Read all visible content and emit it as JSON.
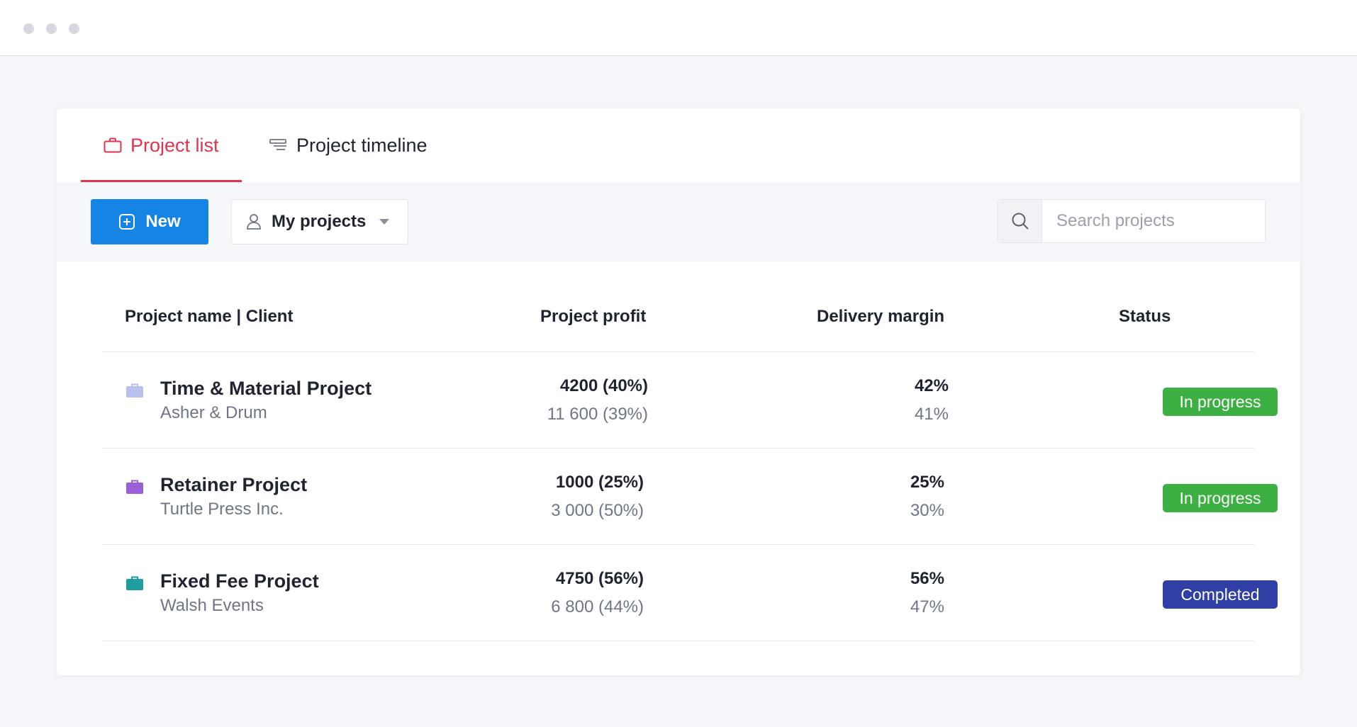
{
  "tabs": [
    {
      "label": "Project list",
      "icon": "briefcase-icon",
      "active": true
    },
    {
      "label": "Project timeline",
      "icon": "timeline-icon",
      "active": false
    }
  ],
  "toolbar": {
    "new_label": "New",
    "filter_label": "My projects",
    "search_placeholder": "Search projects"
  },
  "table": {
    "headers": {
      "name": "Project name | Client",
      "profit": "Project profit",
      "margin": "Delivery margin",
      "status": "Status"
    },
    "rows": [
      {
        "name": "Time & Material Project",
        "client": "Asher & Drum",
        "profit_main": "4200 (40%)",
        "profit_sub": "11 600 (39%)",
        "margin_main": "42%",
        "margin_sub": "41%",
        "status": "In progress",
        "icon_color": "#b8c0ef",
        "status_color": "#3cb043"
      },
      {
        "name": "Retainer Project",
        "client": "Turtle Press Inc.",
        "profit_main": "1000 (25%)",
        "profit_sub": "3 000 (50%)",
        "margin_main": "25%",
        "margin_sub": "30%",
        "status": "In progress",
        "icon_color": "#9b5fd9",
        "status_color": "#3cb043"
      },
      {
        "name": "Fixed Fee Project",
        "client": "Walsh Events",
        "profit_main": "4750 (56%)",
        "profit_sub": "6 800 (44%)",
        "margin_main": "56%",
        "margin_sub": "47%",
        "status": "Completed",
        "icon_color": "#1e9e9e",
        "status_color": "#2f3fa6"
      }
    ]
  },
  "colors": {
    "accent": "#e0344f",
    "primary": "#1584e5"
  }
}
